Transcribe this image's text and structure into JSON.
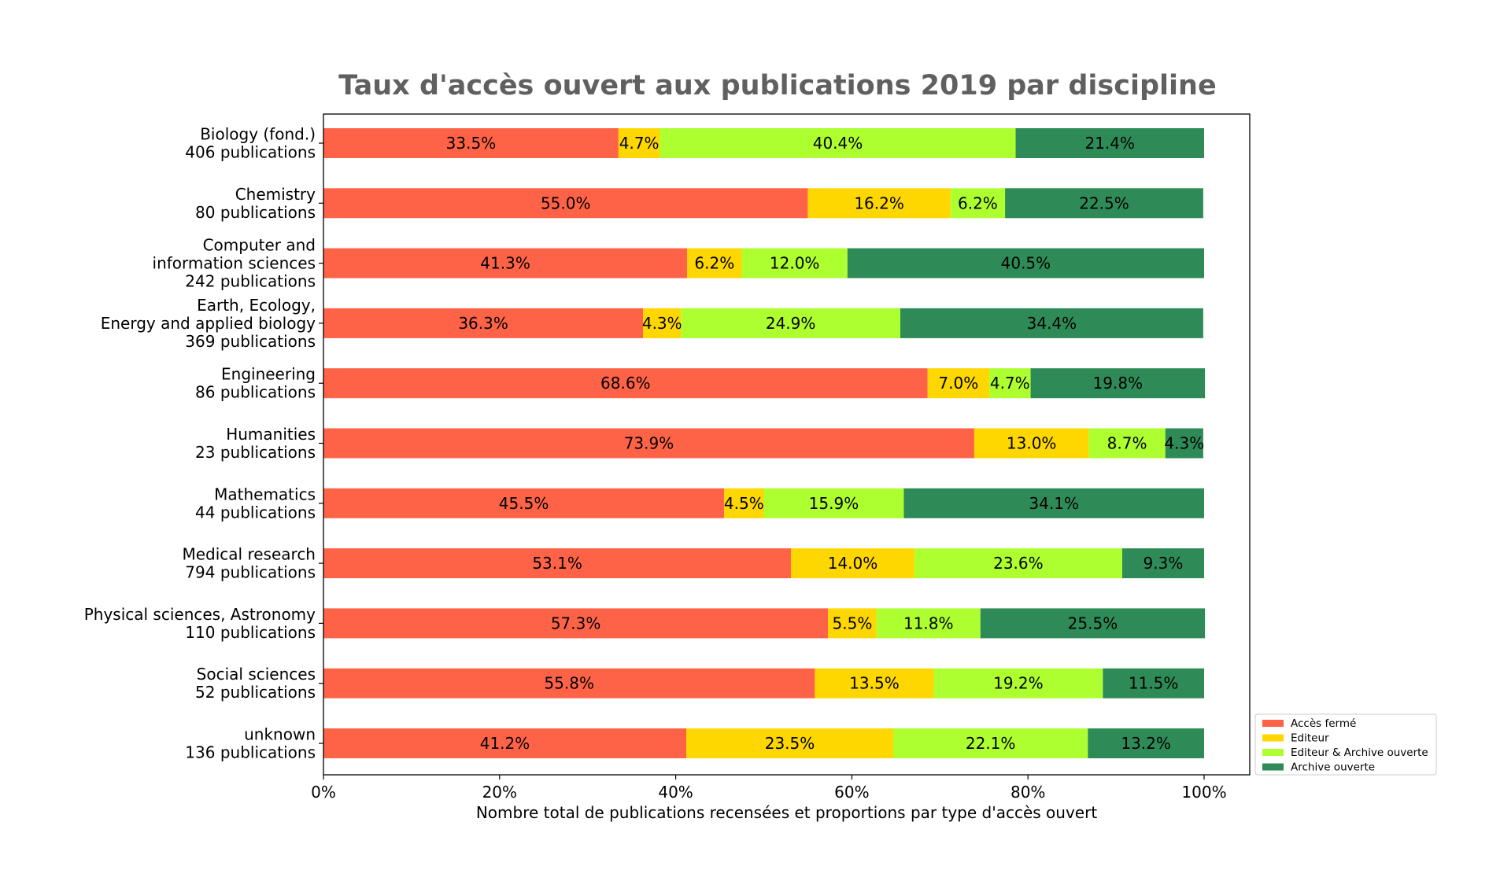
{
  "chart_data": {
    "type": "bar",
    "orientation": "horizontal",
    "stacked": true,
    "title": "Taux d'accès ouvert aux publications 2019 par discipline",
    "xlabel": "Nombre total de publications recensées et proportions par type d'accès ouvert",
    "ylabel": "",
    "xlim": [
      0,
      100
    ],
    "xticks": [
      "0%",
      "20%",
      "40%",
      "60%",
      "80%",
      "100%"
    ],
    "legend_position": "bottom-right",
    "grid": false,
    "categories": [
      [
        "Biology (fond.)",
        "406 publications"
      ],
      [
        "Chemistry",
        "80 publications"
      ],
      [
        "Computer and",
        "information sciences",
        "242 publications"
      ],
      [
        "Earth, Ecology,",
        "Energy and applied biology",
        "369 publications"
      ],
      [
        "Engineering",
        "86 publications"
      ],
      [
        "Humanities",
        "23 publications"
      ],
      [
        "Mathematics",
        "44 publications"
      ],
      [
        "Medical research",
        "794 publications"
      ],
      [
        "Physical sciences, Astronomy",
        "110 publications"
      ],
      [
        "Social sciences",
        "52 publications"
      ],
      [
        "unknown",
        "136 publications"
      ]
    ],
    "series": [
      {
        "name": "Accès fermé",
        "color": "#ff6347",
        "values": [
          33.5,
          55.0,
          41.3,
          36.3,
          68.6,
          73.9,
          45.5,
          53.1,
          57.3,
          55.8,
          41.2
        ],
        "labels": [
          "33.5%",
          "55.0%",
          "41.3%",
          "36.3%",
          "68.6%",
          "73.9%",
          "45.5%",
          "53.1%",
          "57.3%",
          "55.8%",
          "41.2%"
        ]
      },
      {
        "name": "Editeur",
        "color": "#ffd700",
        "values": [
          4.7,
          16.2,
          6.2,
          4.3,
          7.0,
          13.0,
          4.5,
          14.0,
          5.5,
          13.5,
          23.5
        ],
        "labels": [
          "4.7%",
          "16.2%",
          "6.2%",
          "4.3%",
          "7.0%",
          "13.0%",
          "4.5%",
          "14.0%",
          "5.5%",
          "13.5%",
          "23.5%"
        ]
      },
      {
        "name": "Editeur & Archive ouverte",
        "color": "#adff2f",
        "values": [
          40.4,
          6.2,
          12.0,
          24.9,
          4.7,
          8.7,
          15.9,
          23.6,
          11.8,
          19.2,
          22.1
        ],
        "labels": [
          "40.4%",
          "6.2%",
          "12.0%",
          "24.9%",
          "4.7%",
          "8.7%",
          "15.9%",
          "23.6%",
          "11.8%",
          "19.2%",
          "22.1%"
        ]
      },
      {
        "name": "Archive ouverte",
        "color": "#2e8b57",
        "values": [
          21.4,
          22.5,
          40.5,
          34.4,
          19.8,
          4.3,
          34.1,
          9.3,
          25.5,
          11.5,
          13.2
        ],
        "labels": [
          "21.4%",
          "22.5%",
          "40.5%",
          "34.4%",
          "19.8%",
          "4.3%",
          "34.1%",
          "9.3%",
          "25.5%",
          "11.5%",
          "13.2%"
        ]
      }
    ]
  }
}
